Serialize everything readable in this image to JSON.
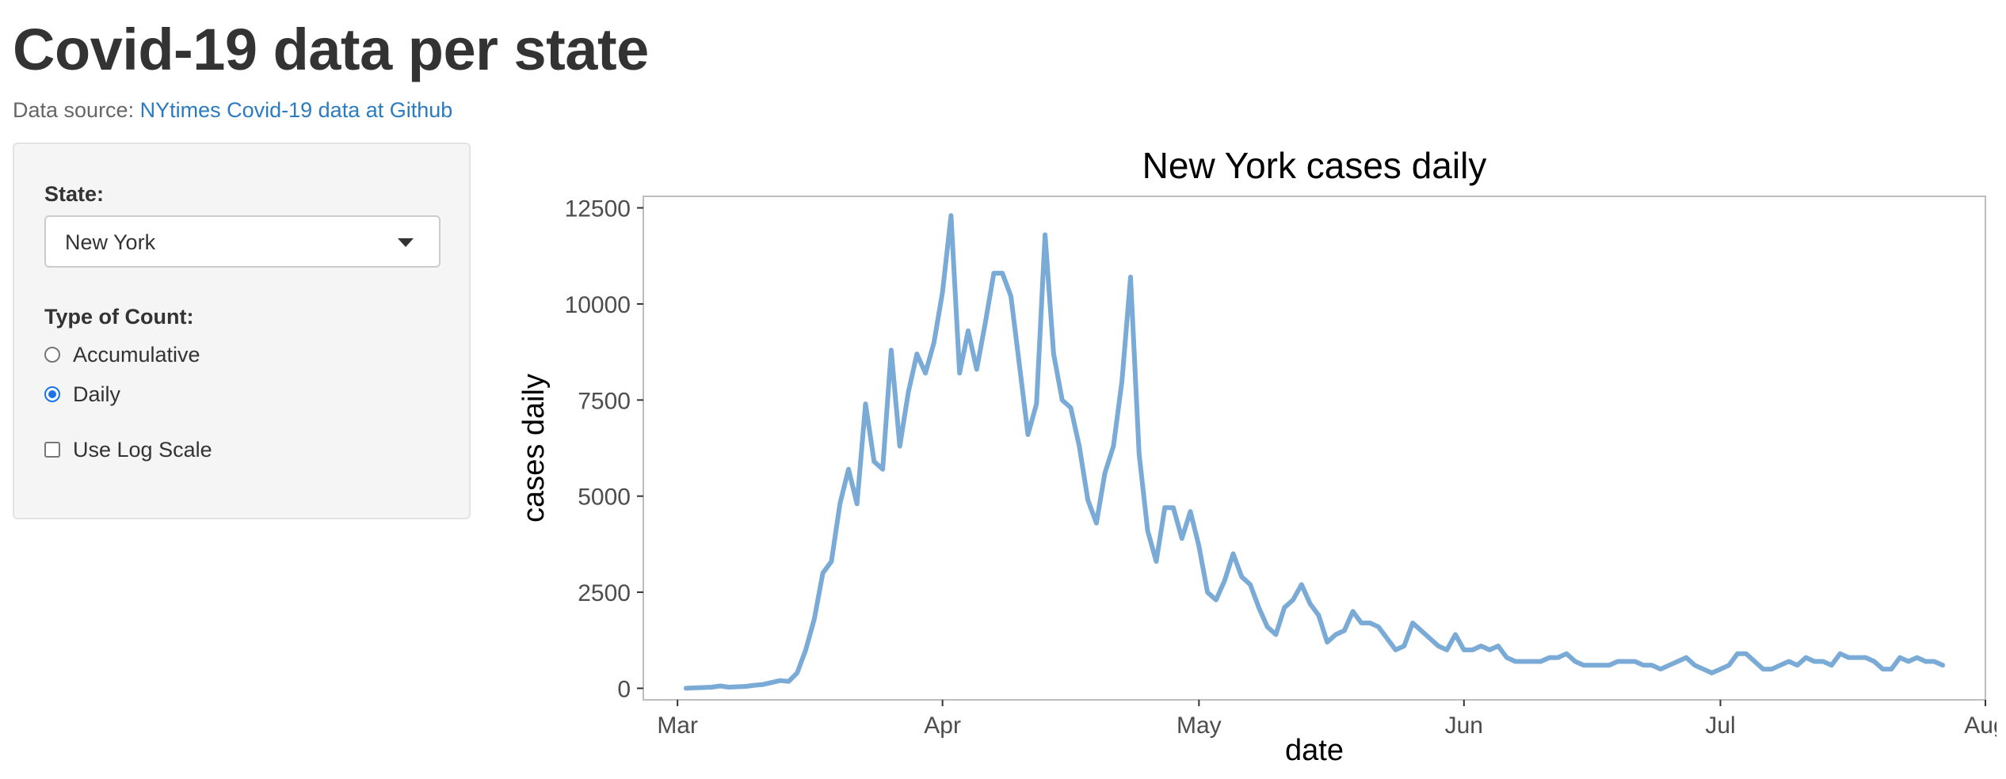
{
  "header": {
    "title": "Covid-19 data per state",
    "source_prefix": "Data source:",
    "source_link": "NYtimes Covid-19 data at Github"
  },
  "sidebar": {
    "state_label": "State:",
    "state_value": "New York",
    "count_label": "Type of Count:",
    "count_options": [
      {
        "label": "Accumulative",
        "checked": false
      },
      {
        "label": "Daily",
        "checked": true
      }
    ],
    "log_scale": {
      "label": "Use Log Scale",
      "checked": false
    }
  },
  "colors": {
    "line": "#7aaad6",
    "accent": "#1a73e8",
    "link": "#2a7bbf"
  },
  "icons": {
    "select_caret": "caret-down-icon"
  },
  "chart_data": {
    "type": "line",
    "title": "New York cases daily",
    "xlabel": "date",
    "ylabel": "cases daily",
    "ylim": [
      -300,
      12800
    ],
    "yticks": [
      0,
      2500,
      5000,
      7500,
      10000,
      12500
    ],
    "xlim": [
      "2020-02-26",
      "2020-08-01"
    ],
    "xticks": [
      {
        "label": "Mar",
        "date": "2020-03-01"
      },
      {
        "label": "Apr",
        "date": "2020-04-01"
      },
      {
        "label": "May",
        "date": "2020-05-01"
      },
      {
        "label": "Jun",
        "date": "2020-06-01"
      },
      {
        "label": "Jul",
        "date": "2020-07-01"
      },
      {
        "label": "Aug",
        "date": "2020-08-01"
      }
    ],
    "grid": false,
    "series": [
      {
        "start_date": "2020-03-02",
        "values": [
          0,
          10,
          20,
          30,
          60,
          30,
          40,
          50,
          80,
          100,
          150,
          200,
          180,
          400,
          1000,
          1800,
          3000,
          3300,
          4800,
          5700,
          4800,
          7400,
          5900,
          5700,
          8800,
          6300,
          7700,
          8700,
          8200,
          9000,
          10300,
          12300,
          8200,
          9300,
          8300,
          9500,
          10800,
          10800,
          10200,
          8400,
          6600,
          7400,
          11800,
          8700,
          7500,
          7300,
          6300,
          4900,
          4300,
          5600,
          6300,
          8000,
          10700,
          6100,
          4100,
          3300,
          4700,
          4700,
          3900,
          4600,
          3700,
          2500,
          2300,
          2800,
          3500,
          2900,
          2700,
          2100,
          1600,
          1400,
          2100,
          2300,
          2700,
          2200,
          1900,
          1200,
          1400,
          1500,
          2000,
          1700,
          1700,
          1600,
          1300,
          1000,
          1100,
          1700,
          1500,
          1300,
          1100,
          1000,
          1400,
          1000,
          1000,
          1100,
          1000,
          1100,
          800,
          700,
          700,
          700,
          700,
          800,
          800,
          900,
          700,
          600,
          600,
          600,
          600,
          700,
          700,
          700,
          600,
          600,
          500,
          600,
          700,
          800,
          600,
          500,
          400,
          500,
          600,
          900,
          900,
          700,
          500,
          500,
          600,
          700,
          600,
          800,
          700,
          700,
          600,
          900,
          800,
          800,
          800,
          700,
          500,
          500,
          800,
          700,
          800,
          700,
          700,
          600
        ]
      }
    ]
  }
}
